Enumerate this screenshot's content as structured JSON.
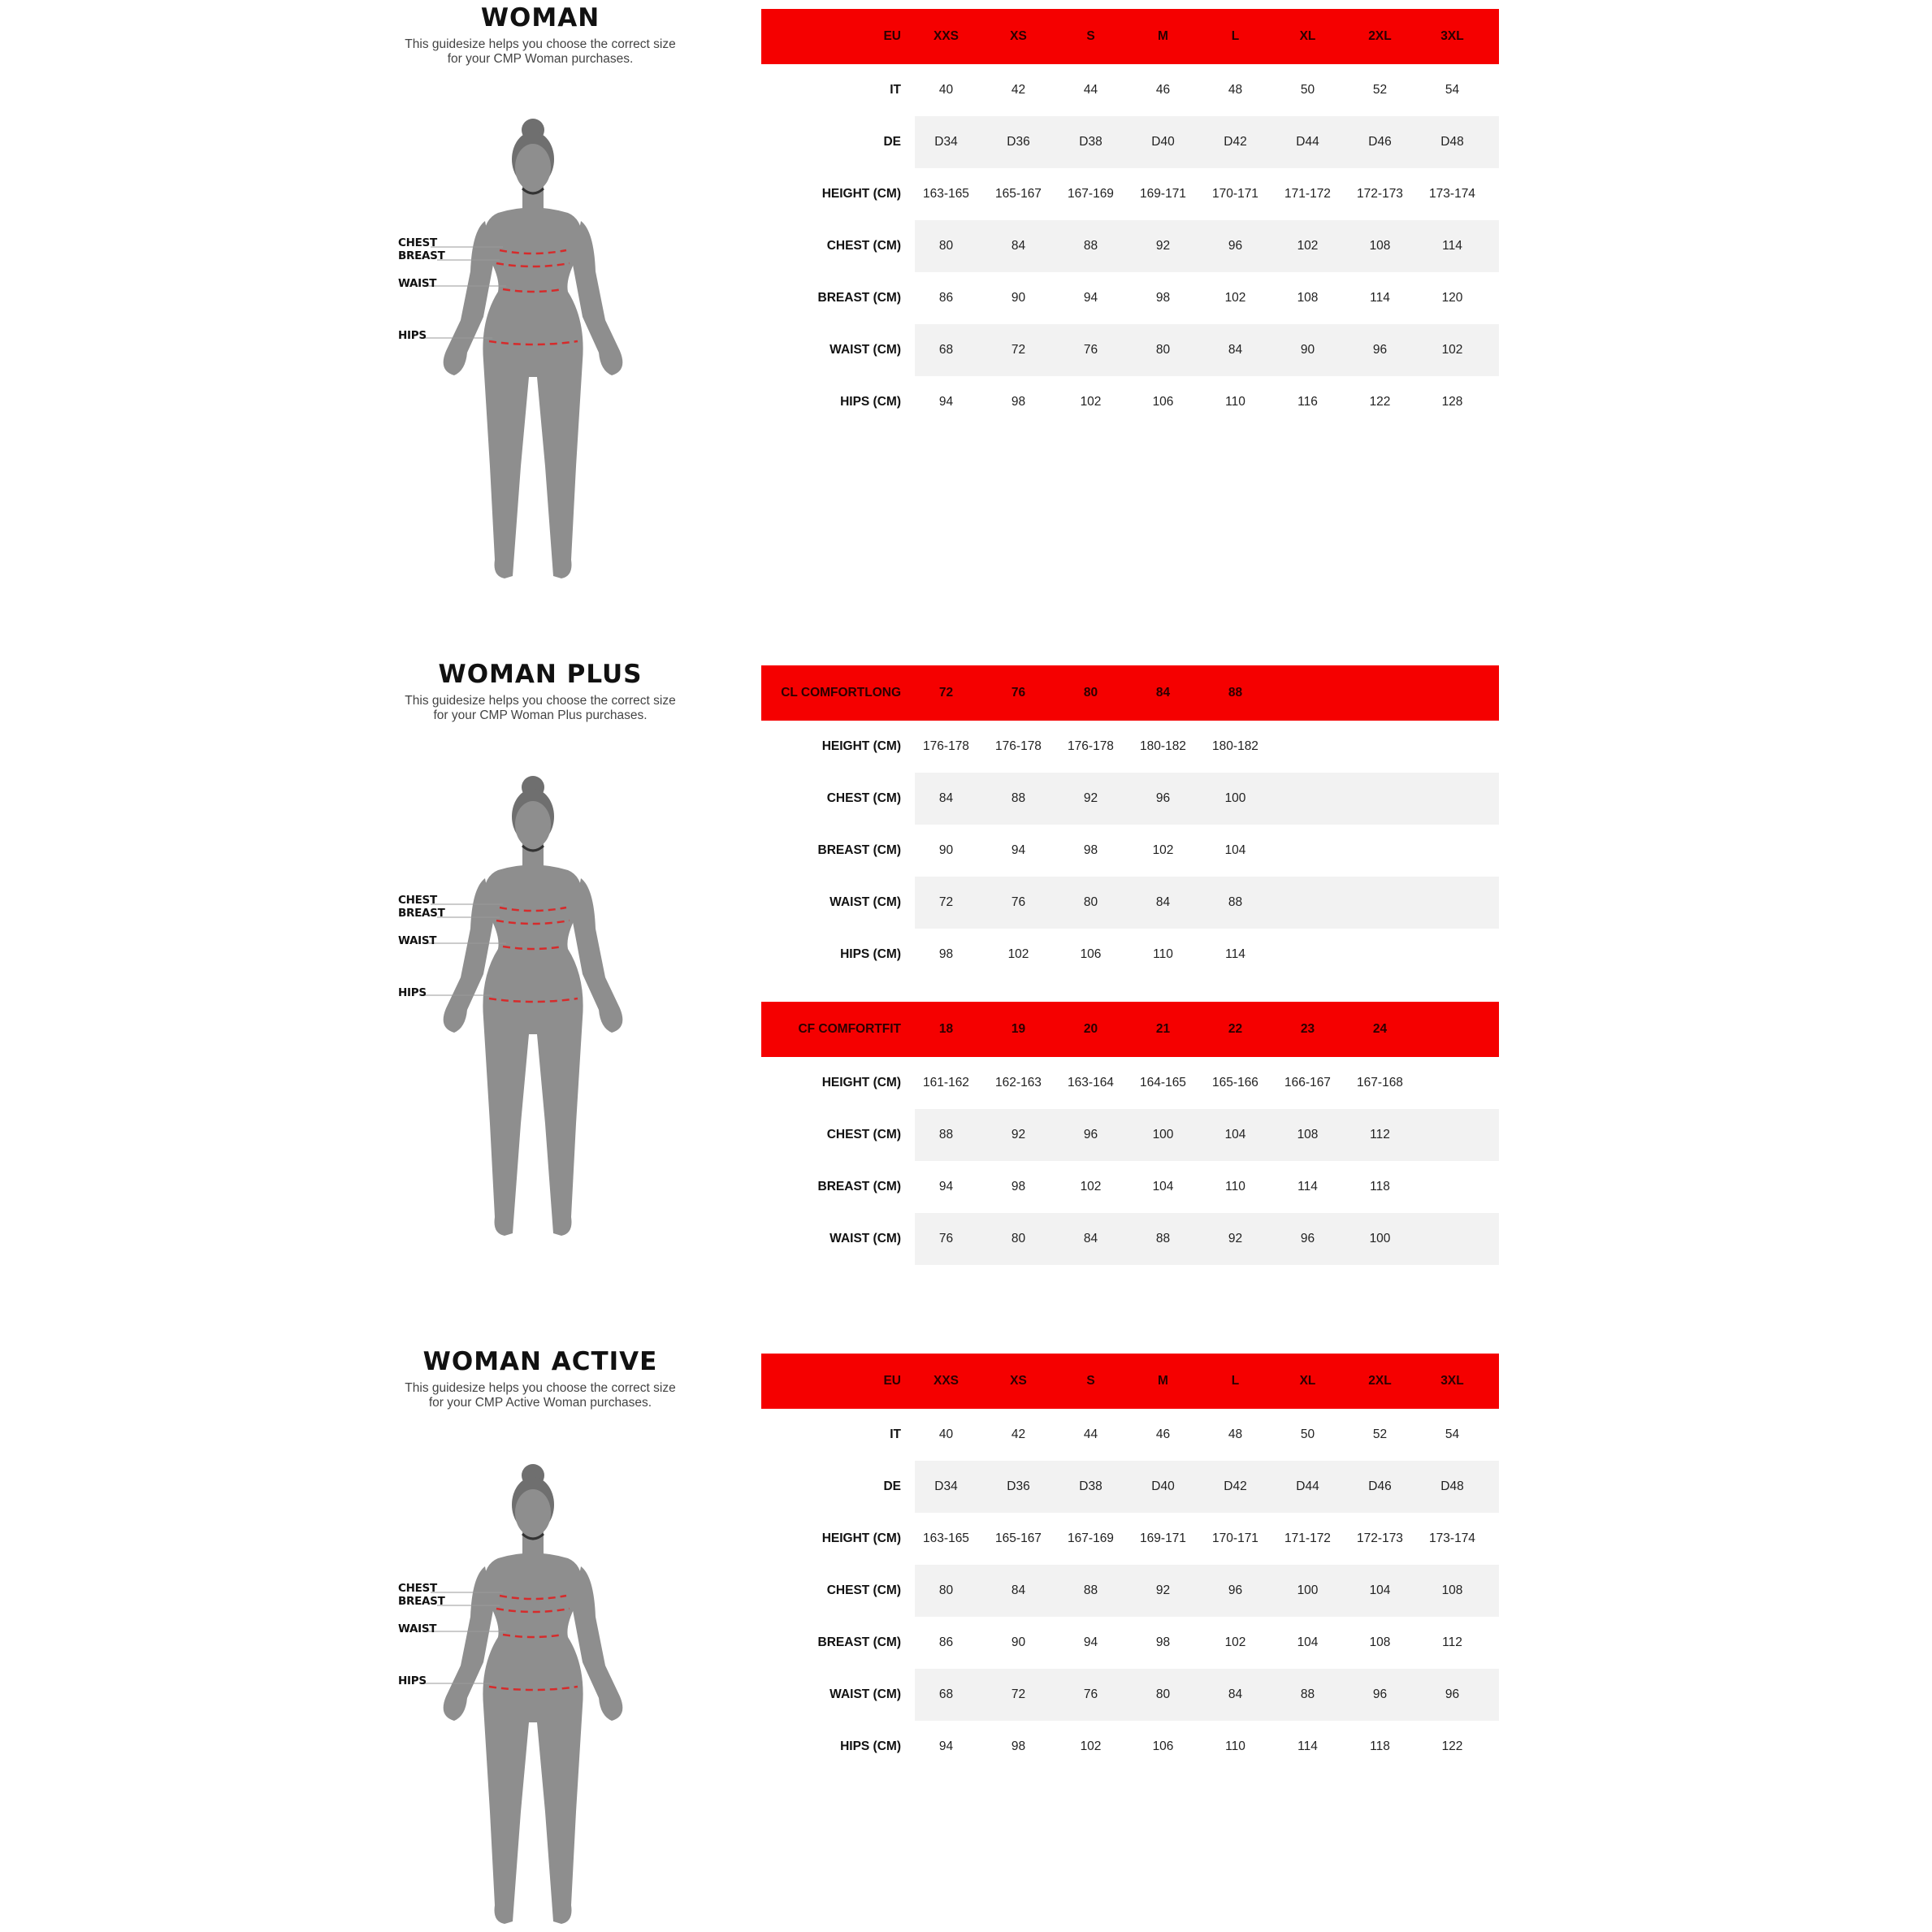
{
  "colors": {
    "header_red": "#f50000",
    "shaded_row": "#f2f2f2",
    "measure_line": "#d62b2b",
    "silhouette": "#8e8e8e"
  },
  "sections": [
    {
      "title": "WOMAN",
      "subtitle_lines": [
        "This guidesize helps you choose the correct size",
        "for your CMP Woman purchases."
      ],
      "figure_labels": {
        "chest": "CHEST",
        "breast": "BREAST",
        "waist": "WAIST",
        "hips": "HIPS"
      },
      "tables": [
        {
          "header_label": "EU",
          "sizes": [
            "XXS",
            "XS",
            "S",
            "M",
            "L",
            "XL",
            "2XL",
            "3XL"
          ],
          "rows": [
            {
              "label": "IT",
              "values": [
                "40",
                "42",
                "44",
                "46",
                "48",
                "50",
                "52",
                "54"
              ]
            },
            {
              "label": "DE",
              "values": [
                "D34",
                "D36",
                "D38",
                "D40",
                "D42",
                "D44",
                "D46",
                "D48"
              ]
            },
            {
              "label": "HEIGHT (CM)",
              "values": [
                "163-165",
                "165-167",
                "167-169",
                "169-171",
                "170-171",
                "171-172",
                "172-173",
                "173-174"
              ]
            },
            {
              "label": "CHEST (CM)",
              "values": [
                "80",
                "84",
                "88",
                "92",
                "96",
                "102",
                "108",
                "114"
              ]
            },
            {
              "label": "BREAST (CM)",
              "values": [
                "86",
                "90",
                "94",
                "98",
                "102",
                "108",
                "114",
                "120"
              ]
            },
            {
              "label": "WAIST (CM)",
              "values": [
                "68",
                "72",
                "76",
                "80",
                "84",
                "90",
                "96",
                "102"
              ]
            },
            {
              "label": "HIPS (CM)",
              "values": [
                "94",
                "98",
                "102",
                "106",
                "110",
                "116",
                "122",
                "128"
              ]
            }
          ]
        }
      ]
    },
    {
      "title": "WOMAN PLUS",
      "subtitle_lines": [
        "This guidesize helps you choose the correct size",
        "for your CMP Woman Plus purchases."
      ],
      "figure_labels": {
        "chest": "CHEST",
        "breast": "BREAST",
        "waist": "WAIST",
        "hips": "HIPS"
      },
      "tables": [
        {
          "header_label": "CL COMFORTLONG",
          "sizes": [
            "72",
            "76",
            "80",
            "84",
            "88"
          ],
          "rows": [
            {
              "label": "HEIGHT (CM)",
              "values": [
                "176-178",
                "176-178",
                "176-178",
                "180-182",
                "180-182"
              ]
            },
            {
              "label": "CHEST (CM)",
              "values": [
                "84",
                "88",
                "92",
                "96",
                "100"
              ]
            },
            {
              "label": "BREAST (CM)",
              "values": [
                "90",
                "94",
                "98",
                "102",
                "104"
              ]
            },
            {
              "label": "WAIST (CM)",
              "values": [
                "72",
                "76",
                "80",
                "84",
                "88"
              ]
            },
            {
              "label": "HIPS (CM)",
              "values": [
                "98",
                "102",
                "106",
                "110",
                "114"
              ]
            }
          ]
        },
        {
          "header_label": "CF COMFORTFIT",
          "sizes": [
            "18",
            "19",
            "20",
            "21",
            "22",
            "23",
            "24"
          ],
          "rows": [
            {
              "label": "HEIGHT (CM)",
              "values": [
                "161-162",
                "162-163",
                "163-164",
                "164-165",
                "165-166",
                "166-167",
                "167-168"
              ]
            },
            {
              "label": "CHEST (CM)",
              "values": [
                "88",
                "92",
                "96",
                "100",
                "104",
                "108",
                "112"
              ]
            },
            {
              "label": "BREAST (CM)",
              "values": [
                "94",
                "98",
                "102",
                "104",
                "110",
                "114",
                "118"
              ]
            },
            {
              "label": "WAIST (CM)",
              "values": [
                "76",
                "80",
                "84",
                "88",
                "92",
                "96",
                "100"
              ]
            }
          ]
        }
      ]
    },
    {
      "title": "WOMAN ACTIVE",
      "subtitle_lines": [
        "This guidesize helps you choose the correct size",
        "for your CMP Active Woman purchases."
      ],
      "figure_labels": {
        "chest": "CHEST",
        "breast": "BREAST",
        "waist": "WAIST",
        "hips": "HIPS"
      },
      "tables": [
        {
          "header_label": "EU",
          "sizes": [
            "XXS",
            "XS",
            "S",
            "M",
            "L",
            "XL",
            "2XL",
            "3XL"
          ],
          "rows": [
            {
              "label": "IT",
              "values": [
                "40",
                "42",
                "44",
                "46",
                "48",
                "50",
                "52",
                "54"
              ]
            },
            {
              "label": "DE",
              "values": [
                "D34",
                "D36",
                "D38",
                "D40",
                "D42",
                "D44",
                "D46",
                "D48"
              ]
            },
            {
              "label": "HEIGHT (CM)",
              "values": [
                "163-165",
                "165-167",
                "167-169",
                "169-171",
                "170-171",
                "171-172",
                "172-173",
                "173-174"
              ]
            },
            {
              "label": "CHEST (CM)",
              "values": [
                "80",
                "84",
                "88",
                "92",
                "96",
                "100",
                "104",
                "108"
              ]
            },
            {
              "label": "BREAST (CM)",
              "values": [
                "86",
                "90",
                "94",
                "98",
                "102",
                "104",
                "108",
                "112"
              ]
            },
            {
              "label": "WAIST (CM)",
              "values": [
                "68",
                "72",
                "76",
                "80",
                "84",
                "88",
                "96",
                "96"
              ]
            },
            {
              "label": "HIPS (CM)",
              "values": [
                "94",
                "98",
                "102",
                "106",
                "110",
                "114",
                "118",
                "122"
              ]
            }
          ]
        }
      ]
    }
  ]
}
